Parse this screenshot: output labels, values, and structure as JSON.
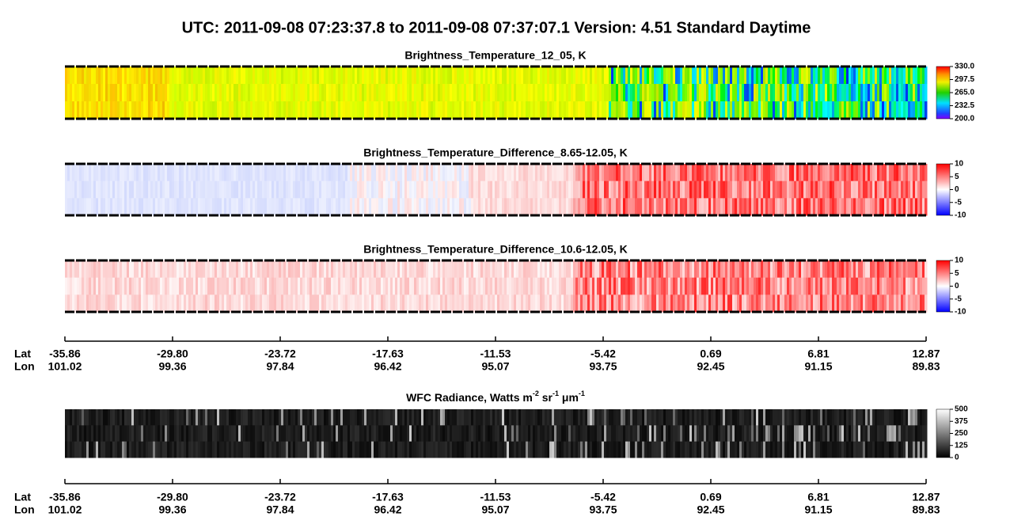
{
  "header": {
    "title": "UTC:  2011-09-08   07:23:37.8  to  2011-09-08   07:37:07.1    Version: 4.51  Standard Daytime"
  },
  "panels": [
    {
      "title": "Brightness_Temperature_12_05, K",
      "colorbar": [
        "330.0",
        "297.5",
        "265.0",
        "232.5",
        "200.0"
      ]
    },
    {
      "title": "Brightness_Temperature_Difference_8.65-12.05, K",
      "colorbar": [
        "10",
        "5",
        "0",
        "-5",
        "-10"
      ]
    },
    {
      "title": "Brightness_Temperature_Difference_10.6-12.05, K",
      "colorbar": [
        "10",
        "5",
        "0",
        "-5",
        "-10"
      ]
    },
    {
      "title": [
        {
          "text": "WFC Radiance, Watts m"
        },
        {
          "text": "-2",
          "sup": true
        },
        {
          "text": " sr"
        },
        {
          "text": "-1",
          "sup": true
        },
        {
          "text": " μm"
        },
        {
          "text": "-1",
          "sup": true
        }
      ],
      "colorbar": [
        "500",
        "375",
        "250",
        "125",
        "0"
      ]
    }
  ],
  "axis": {
    "lat_label": "Lat",
    "lon_label": "Lon",
    "lat": [
      "-35.86",
      "-29.80",
      "-23.72",
      "-17.63",
      "-11.53",
      "-5.42",
      "0.69",
      "6.81",
      "12.87"
    ],
    "lon": [
      "101.02",
      "99.36",
      "97.84",
      "96.42",
      "95.07",
      "93.75",
      "92.45",
      "91.15",
      "89.83"
    ]
  }
}
